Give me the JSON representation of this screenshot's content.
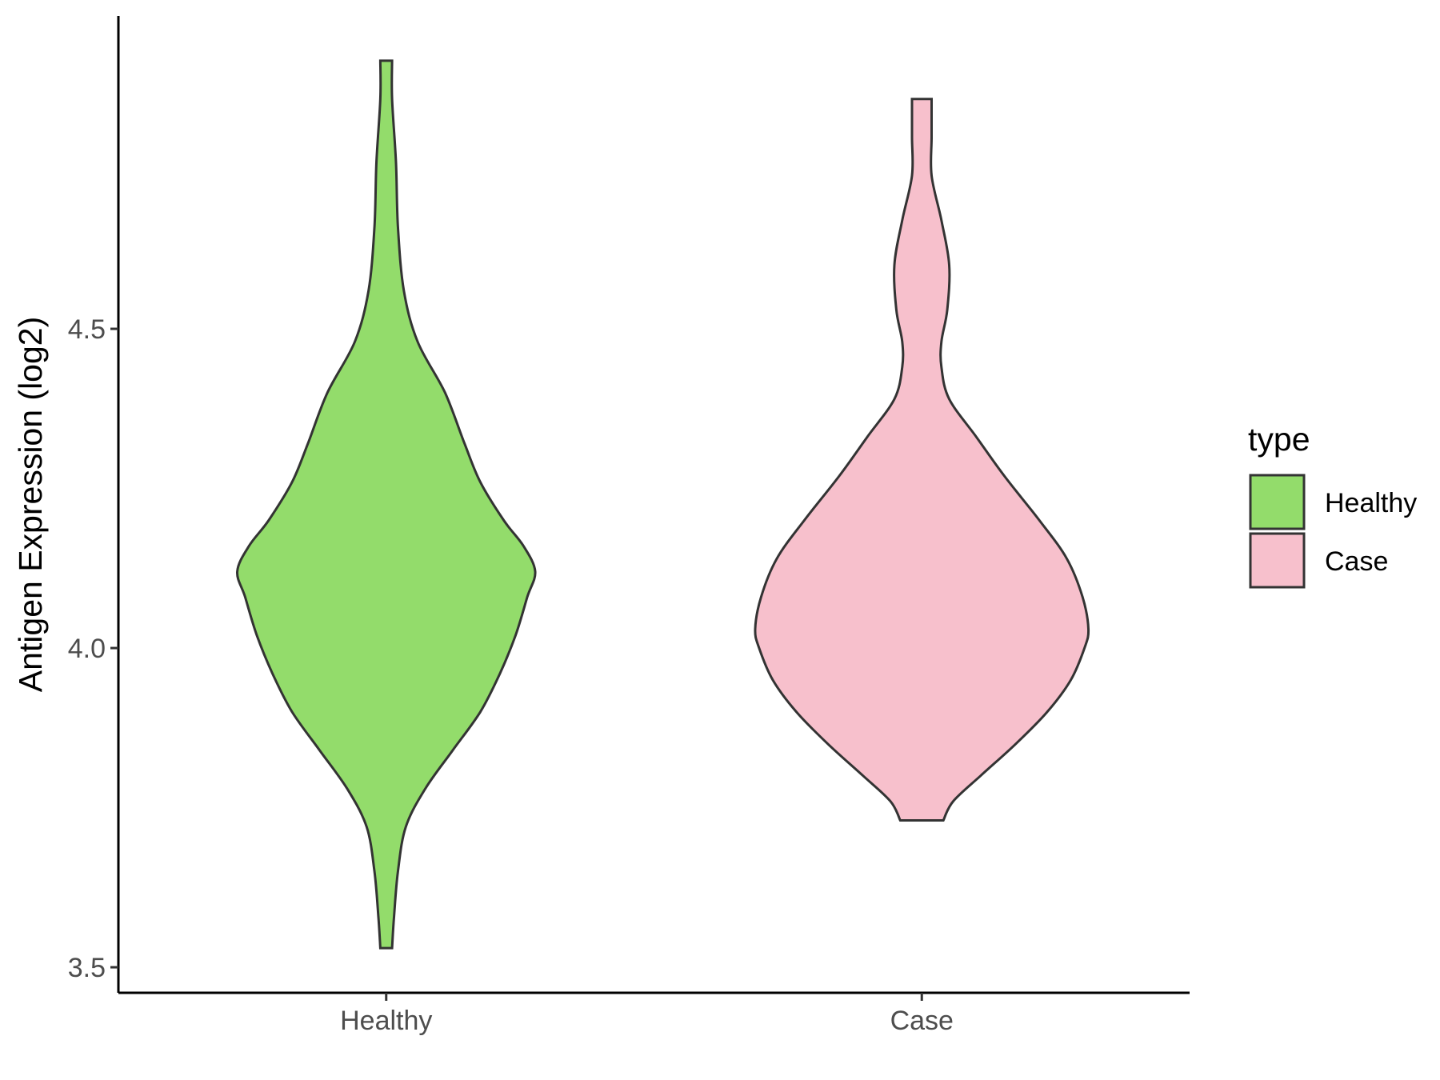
{
  "chart_data": {
    "type": "violin",
    "ylabel": "Antigen Expression (log2)",
    "xlabel": "",
    "categories": [
      "Healthy",
      "Case"
    ],
    "ylim": [
      3.46,
      4.99
    ],
    "yticks": [
      3.5,
      4.0,
      4.5
    ],
    "ytick_labels": [
      "3.5",
      "4.0",
      "4.5"
    ],
    "grid": false,
    "legend": {
      "title": "type",
      "position": "right",
      "entries": [
        {
          "label": "Healthy",
          "color": "#93DC6B"
        },
        {
          "label": "Case",
          "color": "#F7C0CC"
        }
      ]
    },
    "series": [
      {
        "category": "Healthy",
        "color": "#93DC6B",
        "y_min": 3.53,
        "y_max": 4.92,
        "density_profile": [
          [
            3.53,
            0.03
          ],
          [
            3.58,
            0.04
          ],
          [
            3.65,
            0.06
          ],
          [
            3.72,
            0.1
          ],
          [
            3.78,
            0.2
          ],
          [
            3.84,
            0.34
          ],
          [
            3.9,
            0.48
          ],
          [
            3.96,
            0.58
          ],
          [
            4.02,
            0.66
          ],
          [
            4.08,
            0.72
          ],
          [
            4.12,
            0.76
          ],
          [
            4.16,
            0.7
          ],
          [
            4.2,
            0.6
          ],
          [
            4.26,
            0.48
          ],
          [
            4.32,
            0.4
          ],
          [
            4.4,
            0.3
          ],
          [
            4.48,
            0.16
          ],
          [
            4.56,
            0.09
          ],
          [
            4.66,
            0.06
          ],
          [
            4.76,
            0.05
          ],
          [
            4.86,
            0.03
          ],
          [
            4.92,
            0.03
          ]
        ]
      },
      {
        "category": "Case",
        "color": "#F7C0CC",
        "y_min": 3.73,
        "y_max": 4.86,
        "density_profile": [
          [
            3.73,
            0.11
          ],
          [
            3.76,
            0.16
          ],
          [
            3.8,
            0.3
          ],
          [
            3.85,
            0.48
          ],
          [
            3.9,
            0.64
          ],
          [
            3.95,
            0.76
          ],
          [
            4.0,
            0.83
          ],
          [
            4.03,
            0.85
          ],
          [
            4.08,
            0.82
          ],
          [
            4.14,
            0.74
          ],
          [
            4.2,
            0.6
          ],
          [
            4.27,
            0.42
          ],
          [
            4.33,
            0.28
          ],
          [
            4.39,
            0.14
          ],
          [
            4.44,
            0.1
          ],
          [
            4.48,
            0.1
          ],
          [
            4.53,
            0.13
          ],
          [
            4.6,
            0.14
          ],
          [
            4.67,
            0.1
          ],
          [
            4.74,
            0.05
          ],
          [
            4.8,
            0.05
          ],
          [
            4.86,
            0.05
          ]
        ]
      }
    ]
  }
}
